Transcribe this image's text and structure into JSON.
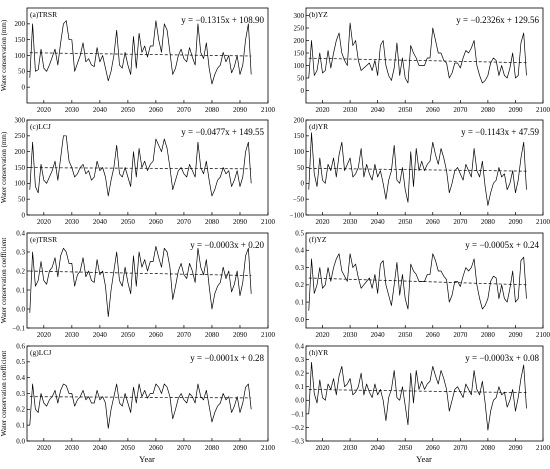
{
  "figure": {
    "x_axis_label": "Year"
  },
  "chart_data": [
    {
      "type": "line",
      "title": "(a)TRSR",
      "equation": "y = −0.1315x + 108.90",
      "ylabel": "Water conservation (mm)",
      "xlim": [
        2014,
        2100
      ],
      "ylim": [
        -50,
        250
      ],
      "xticks": [
        2020,
        2030,
        2040,
        2050,
        2060,
        2070,
        2080,
        2090,
        2100
      ],
      "yticks": [
        0,
        50,
        100,
        150,
        200
      ],
      "ytick_labels": [
        "0",
        "50",
        "100",
        "150",
        "200"
      ],
      "trend": {
        "slope": -0.1315,
        "intercept": 108.9
      },
      "x_start": 2015,
      "values": [
        30,
        200,
        50,
        55,
        120,
        60,
        50,
        70,
        95,
        120,
        70,
        140,
        200,
        210,
        150,
        150,
        50,
        75,
        100,
        140,
        80,
        90,
        70,
        65,
        125,
        80,
        100,
        60,
        20,
        50,
        100,
        180,
        70,
        60,
        110,
        70,
        40,
        160,
        60,
        170,
        110,
        130,
        95,
        130,
        130,
        210,
        150,
        110,
        200,
        180,
        110,
        40,
        60,
        100,
        120,
        90,
        80,
        125,
        95,
        70,
        200,
        110,
        90,
        140,
        60,
        10,
        40,
        60,
        70,
        110,
        80,
        100,
        45,
        65,
        100,
        40,
        70,
        150,
        200,
        40
      ]
    },
    {
      "type": "line",
      "title": "(b)YZ",
      "equation": "y = −0.2326x + 129.56",
      "ylabel": "",
      "xlim": [
        2014,
        2100
      ],
      "ylim": [
        -50,
        330
      ],
      "xticks": [
        2020,
        2030,
        2040,
        2050,
        2060,
        2070,
        2080,
        2090,
        2100
      ],
      "yticks": [
        0,
        50,
        100,
        150,
        200,
        250,
        300
      ],
      "ytick_labels": [
        "0",
        "50",
        "100",
        "150",
        "200",
        "250",
        "300"
      ],
      "trend": {
        "slope": -0.2326,
        "intercept": 129.56
      },
      "x_start": 2015,
      "values": [
        50,
        200,
        60,
        80,
        150,
        70,
        80,
        160,
        90,
        150,
        200,
        230,
        150,
        120,
        100,
        270,
        180,
        200,
        120,
        80,
        90,
        100,
        110,
        80,
        120,
        60,
        180,
        200,
        100,
        60,
        40,
        90,
        190,
        60,
        130,
        50,
        30,
        180,
        150,
        130,
        100,
        100,
        100,
        130,
        130,
        250,
        200,
        150,
        150,
        120,
        110,
        50,
        70,
        110,
        110,
        90,
        130,
        160,
        150,
        170,
        200,
        100,
        60,
        30,
        40,
        60,
        110,
        130,
        120,
        60,
        100,
        60,
        50,
        90,
        150,
        50,
        60,
        190,
        230,
        60
      ]
    },
    {
      "type": "line",
      "title": "(c)LCJ",
      "equation": "y = −0.0477x + 149.55",
      "ylabel": "Water conservation (mm)",
      "xlim": [
        2014,
        2100
      ],
      "ylim": [
        0,
        300
      ],
      "xticks": [
        2020,
        2030,
        2040,
        2050,
        2060,
        2070,
        2080,
        2090,
        2100
      ],
      "yticks": [
        0,
        50,
        100,
        150,
        200,
        250,
        300
      ],
      "ytick_labels": [
        "0",
        "50",
        "100",
        "150",
        "200",
        "250",
        "300"
      ],
      "trend": {
        "slope": -0.0477,
        "intercept": 149.55
      },
      "x_start": 2015,
      "values": [
        80,
        230,
        90,
        70,
        160,
        110,
        100,
        120,
        140,
        170,
        110,
        180,
        250,
        250,
        170,
        150,
        120,
        130,
        150,
        160,
        130,
        140,
        110,
        120,
        170,
        140,
        150,
        120,
        60,
        110,
        150,
        220,
        130,
        120,
        150,
        120,
        90,
        200,
        120,
        210,
        150,
        170,
        140,
        160,
        170,
        240,
        220,
        200,
        240,
        210,
        150,
        80,
        110,
        140,
        150,
        130,
        120,
        160,
        140,
        120,
        230,
        150,
        130,
        170,
        110,
        60,
        80,
        110,
        120,
        150,
        130,
        140,
        90,
        110,
        140,
        90,
        120,
        200,
        230,
        100
      ]
    },
    {
      "type": "line",
      "title": "(d)YR",
      "equation": "y = −0.1143x + 47.59",
      "ylabel": "",
      "xlim": [
        2014,
        2100
      ],
      "ylim": [
        -100,
        200
      ],
      "xticks": [
        2020,
        2030,
        2040,
        2050,
        2060,
        2070,
        2080,
        2090,
        2100
      ],
      "yticks": [
        -100,
        -50,
        0,
        50,
        100,
        150,
        200
      ],
      "ytick_labels": [
        "−100",
        "−50",
        "0",
        "50",
        "100",
        "150",
        "200"
      ],
      "trend": {
        "slope": -0.1143,
        "intercept": 47.59
      },
      "x_start": 2015,
      "values": [
        -20,
        160,
        30,
        -10,
        80,
        10,
        0,
        60,
        40,
        80,
        20,
        90,
        130,
        40,
        60,
        80,
        20,
        30,
        50,
        110,
        20,
        60,
        30,
        10,
        60,
        20,
        40,
        0,
        -50,
        10,
        40,
        120,
        10,
        0,
        50,
        -20,
        -60,
        100,
        -10,
        110,
        40,
        70,
        40,
        60,
        70,
        130,
        90,
        60,
        110,
        80,
        40,
        -30,
        0,
        40,
        50,
        30,
        10,
        60,
        40,
        20,
        110,
        40,
        20,
        70,
        -10,
        -70,
        -30,
        0,
        10,
        50,
        20,
        30,
        -20,
        0,
        40,
        -30,
        10,
        80,
        130,
        -20
      ]
    },
    {
      "type": "line",
      "title": "(e)TRSR",
      "equation": "y = −0.0003x + 0.20",
      "ylabel": "Water conservation coefficient",
      "xlim": [
        2014,
        2100
      ],
      "ylim": [
        -0.1,
        0.4
      ],
      "xticks": [
        2020,
        2030,
        2040,
        2050,
        2060,
        2070,
        2080,
        2090,
        2100
      ],
      "yticks": [
        -0.1,
        0,
        0.1,
        0.2,
        0.3,
        0.4
      ],
      "ytick_labels": [
        "−0.1",
        "0.0",
        "0.1",
        "0.2",
        "0.3",
        "0.4"
      ],
      "trend": {
        "slope": -0.0003,
        "intercept": 0.2
      },
      "x_start": 2015,
      "values": [
        -0.02,
        0.3,
        0.12,
        0.15,
        0.25,
        0.15,
        0.13,
        0.2,
        0.22,
        0.27,
        0.17,
        0.28,
        0.32,
        0.3,
        0.24,
        0.24,
        0.12,
        0.18,
        0.2,
        0.27,
        0.17,
        0.2,
        0.15,
        0.14,
        0.26,
        0.18,
        0.2,
        0.12,
        -0.04,
        0.1,
        0.2,
        0.3,
        0.15,
        0.12,
        0.22,
        0.14,
        0.08,
        0.28,
        0.12,
        0.3,
        0.22,
        0.26,
        0.2,
        0.25,
        0.25,
        0.33,
        0.27,
        0.22,
        0.32,
        0.3,
        0.22,
        0.05,
        0.12,
        0.2,
        0.24,
        0.18,
        0.16,
        0.24,
        0.2,
        0.14,
        0.32,
        0.22,
        0.18,
        0.26,
        0.12,
        0.0,
        0.08,
        0.12,
        0.14,
        0.22,
        0.16,
        0.2,
        0.09,
        0.13,
        0.2,
        0.07,
        0.14,
        0.28,
        0.32,
        0.08
      ]
    },
    {
      "type": "line",
      "title": "(f)YZ",
      "equation": "y = −0.0005x + 0.24",
      "ylabel": "",
      "xlim": [
        2014,
        2100
      ],
      "ylim": [
        -0.05,
        0.5
      ],
      "xticks": [
        2020,
        2030,
        2040,
        2050,
        2060,
        2070,
        2080,
        2090,
        2100
      ],
      "yticks": [
        0,
        0.1,
        0.2,
        0.3,
        0.4,
        0.5
      ],
      "ytick_labels": [
        "0.0",
        "0.1",
        "0.2",
        "0.3",
        "0.4",
        "0.5"
      ],
      "trend": {
        "slope": -0.0005,
        "intercept": 0.24
      },
      "x_start": 2015,
      "values": [
        0.05,
        0.35,
        0.15,
        0.2,
        0.3,
        0.18,
        0.2,
        0.3,
        0.22,
        0.3,
        0.35,
        0.38,
        0.28,
        0.25,
        0.22,
        0.38,
        0.3,
        0.32,
        0.24,
        0.18,
        0.2,
        0.22,
        0.24,
        0.18,
        0.26,
        0.15,
        0.32,
        0.34,
        0.2,
        0.14,
        0.08,
        0.2,
        0.33,
        0.14,
        0.26,
        0.12,
        0.06,
        0.32,
        0.28,
        0.26,
        0.22,
        0.22,
        0.22,
        0.26,
        0.26,
        0.38,
        0.34,
        0.28,
        0.28,
        0.25,
        0.23,
        0.1,
        0.14,
        0.22,
        0.22,
        0.19,
        0.25,
        0.3,
        0.28,
        0.3,
        0.35,
        0.2,
        0.12,
        0.06,
        0.08,
        0.12,
        0.22,
        0.25,
        0.24,
        0.12,
        0.2,
        0.12,
        0.1,
        0.18,
        0.28,
        0.1,
        0.12,
        0.34,
        0.36,
        0.12
      ]
    },
    {
      "type": "line",
      "title": "(g)LCJ",
      "equation": "y = −0.0001x + 0.28",
      "ylabel": "Water conservation coefficient",
      "xlim": [
        2014,
        2100
      ],
      "ylim": [
        0,
        0.6
      ],
      "xticks": [
        2020,
        2030,
        2040,
        2050,
        2060,
        2070,
        2080,
        2090,
        2100
      ],
      "yticks": [
        0,
        0.1,
        0.2,
        0.3,
        0.4,
        0.5,
        0.6
      ],
      "ytick_labels": [
        "0.0",
        "0.1",
        "0.2",
        "0.3",
        "0.4",
        "0.5",
        "0.6"
      ],
      "trend": {
        "slope": -0.0001,
        "intercept": 0.28
      },
      "x_start": 2015,
      "values": [
        0.1,
        0.36,
        0.2,
        0.18,
        0.3,
        0.24,
        0.22,
        0.26,
        0.28,
        0.32,
        0.24,
        0.32,
        0.36,
        0.35,
        0.3,
        0.3,
        0.22,
        0.26,
        0.28,
        0.32,
        0.26,
        0.28,
        0.24,
        0.24,
        0.32,
        0.26,
        0.28,
        0.24,
        0.08,
        0.2,
        0.28,
        0.36,
        0.24,
        0.22,
        0.3,
        0.24,
        0.18,
        0.34,
        0.24,
        0.36,
        0.28,
        0.32,
        0.27,
        0.3,
        0.3,
        0.36,
        0.34,
        0.3,
        0.36,
        0.34,
        0.28,
        0.14,
        0.2,
        0.27,
        0.3,
        0.26,
        0.24,
        0.3,
        0.28,
        0.24,
        0.36,
        0.28,
        0.26,
        0.32,
        0.22,
        0.12,
        0.18,
        0.22,
        0.24,
        0.3,
        0.26,
        0.28,
        0.18,
        0.22,
        0.28,
        0.18,
        0.24,
        0.34,
        0.36,
        0.2
      ]
    },
    {
      "type": "line",
      "title": "(h)YR",
      "equation": "y = −0.0003x + 0.08",
      "ylabel": "",
      "xlim": [
        2014,
        2100
      ],
      "ylim": [
        -0.3,
        0.4
      ],
      "xticks": [
        2020,
        2030,
        2040,
        2050,
        2060,
        2070,
        2080,
        2090,
        2100
      ],
      "yticks": [
        -0.3,
        -0.2,
        -0.1,
        0,
        0.1,
        0.2,
        0.3,
        0.4
      ],
      "ytick_labels": [
        "−0.3",
        "−0.2",
        "−0.1",
        "0.0",
        "0.1",
        "0.2",
        "0.3",
        "0.4"
      ],
      "trend": {
        "slope": -0.0003,
        "intercept": 0.08
      },
      "x_start": 2015,
      "values": [
        -0.1,
        0.28,
        0.05,
        -0.02,
        0.15,
        0.02,
        0.0,
        0.12,
        0.08,
        0.16,
        0.04,
        0.18,
        0.25,
        0.1,
        0.12,
        0.16,
        0.04,
        0.06,
        0.1,
        0.2,
        0.04,
        0.12,
        0.06,
        0.02,
        0.12,
        0.04,
        0.08,
        0.0,
        -0.15,
        0.02,
        0.08,
        0.22,
        0.02,
        0.0,
        0.1,
        -0.04,
        -0.18,
        0.2,
        -0.02,
        0.22,
        0.08,
        0.14,
        0.08,
        0.12,
        0.14,
        0.25,
        0.18,
        0.12,
        0.22,
        0.16,
        0.08,
        -0.08,
        0.0,
        0.08,
        0.1,
        0.06,
        0.02,
        0.12,
        0.08,
        0.04,
        0.22,
        0.08,
        0.04,
        0.14,
        -0.02,
        -0.22,
        -0.08,
        0.0,
        0.02,
        0.1,
        0.04,
        0.06,
        -0.05,
        0.0,
        0.08,
        -0.08,
        0.02,
        0.16,
        0.26,
        -0.06
      ]
    }
  ]
}
